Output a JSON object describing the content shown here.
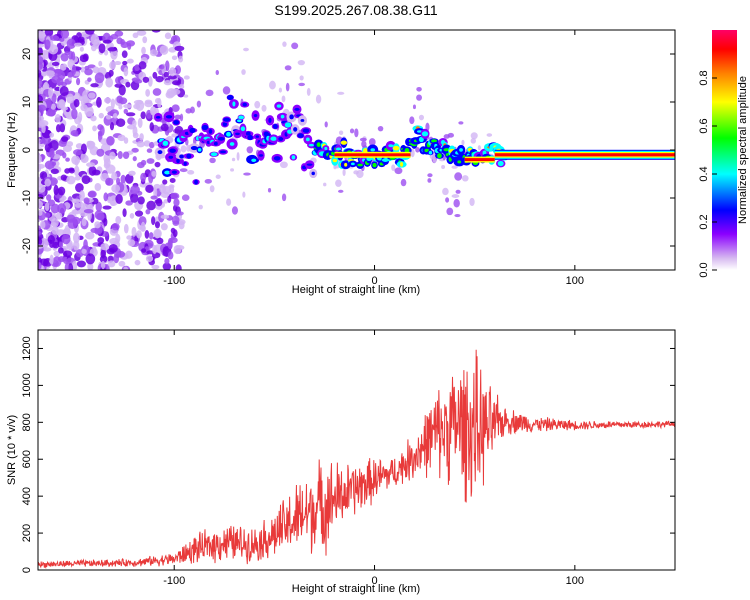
{
  "title": "S199.2025.267.08.38.G11",
  "chart_data": [
    {
      "type": "heatmap",
      "xlabel": "Height of straight line (km)",
      "ylabel": "Frequency (Hz)",
      "xlim": [
        -168,
        150
      ],
      "ylim": [
        -25,
        25
      ],
      "xticks": [
        -100,
        0,
        100
      ],
      "yticks": [
        -20,
        -10,
        0,
        10,
        20
      ],
      "colorbar": {
        "label": "Normalized spectral amplitude",
        "range": [
          0,
          1
        ],
        "ticks": [
          0.0,
          0.2,
          0.4,
          0.6,
          0.8
        ],
        "stops": [
          "#ffffff",
          "#d6b8f0",
          "#8b00ff",
          "#0000ff",
          "#00ffff",
          "#00ff00",
          "#ffff00",
          "#ff8000",
          "#ff0000",
          "#ff0066"
        ]
      },
      "ridge_frequency": [
        {
          "x": -110,
          "y": 0.5
        },
        {
          "x": -90,
          "y": 1.5
        },
        {
          "x": -70,
          "y": 3.5
        },
        {
          "x": -50,
          "y": 3.0
        },
        {
          "x": -40,
          "y": 4.0
        },
        {
          "x": -30,
          "y": 2.0
        },
        {
          "x": -20,
          "y": -1.0
        },
        {
          "x": 0,
          "y": -1.0
        },
        {
          "x": 15,
          "y": -1.0
        },
        {
          "x": 22,
          "y": 2.5
        },
        {
          "x": 35,
          "y": 0.0
        },
        {
          "x": 45,
          "y": -2.0
        },
        {
          "x": 60,
          "y": -1.0
        },
        {
          "x": 150,
          "y": -1.0
        }
      ]
    },
    {
      "type": "line",
      "xlabel": "Height of straight line (km)",
      "ylabel": "SNR (10 * v/v)",
      "xlim": [
        -168,
        150
      ],
      "ylim": [
        0,
        1300
      ],
      "xticks": [
        -100,
        0,
        100
      ],
      "yticks": [
        0,
        200,
        400,
        600,
        800,
        1000,
        1200
      ],
      "color": "#e83a3a",
      "envelope": [
        {
          "x": -168,
          "mean": 30,
          "amp": 20
        },
        {
          "x": -120,
          "mean": 40,
          "amp": 25
        },
        {
          "x": -100,
          "mean": 60,
          "amp": 40
        },
        {
          "x": -90,
          "mean": 110,
          "amp": 90
        },
        {
          "x": -75,
          "mean": 150,
          "amp": 120
        },
        {
          "x": -60,
          "mean": 140,
          "amp": 110
        },
        {
          "x": -50,
          "mean": 190,
          "amp": 150
        },
        {
          "x": -40,
          "mean": 270,
          "amp": 220
        },
        {
          "x": -25,
          "mean": 360,
          "amp": 300
        },
        {
          "x": -15,
          "mean": 410,
          "amp": 190
        },
        {
          "x": 0,
          "mean": 490,
          "amp": 140
        },
        {
          "x": 10,
          "mean": 530,
          "amp": 100
        },
        {
          "x": 20,
          "mean": 620,
          "amp": 150
        },
        {
          "x": 30,
          "mean": 740,
          "amp": 260
        },
        {
          "x": 40,
          "mean": 790,
          "amp": 380
        },
        {
          "x": 50,
          "mean": 760,
          "amp": 500
        },
        {
          "x": 55,
          "mean": 760,
          "amp": 320
        },
        {
          "x": 65,
          "mean": 810,
          "amp": 90
        },
        {
          "x": 80,
          "mean": 790,
          "amp": 50
        },
        {
          "x": 100,
          "mean": 785,
          "amp": 30
        },
        {
          "x": 150,
          "mean": 790,
          "amp": 20
        }
      ]
    }
  ]
}
